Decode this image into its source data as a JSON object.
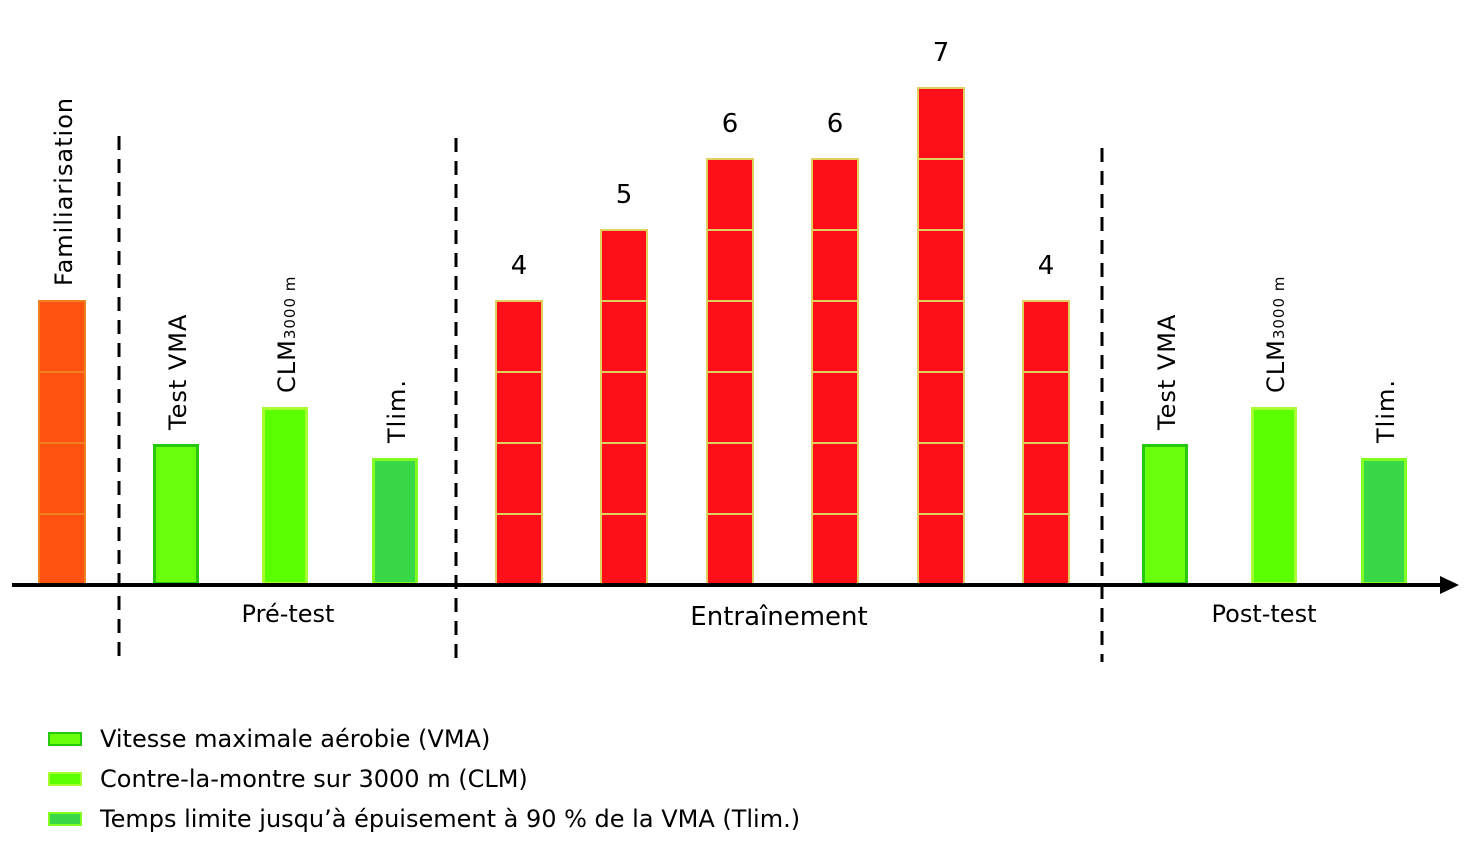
{
  "colors": {
    "familiarisation": "#ff5210",
    "familiarisation_border": "#f08020",
    "training": "#ff1018",
    "training_border": "#e0d060",
    "vma": "#6aff0a",
    "vma_border": "#28c810",
    "clm": "#5aff00",
    "clm_border": "#a8ff30",
    "tlim": "#38d848",
    "tlim_border": "#80ff20"
  },
  "familiarisation": {
    "label": "Familiarisation"
  },
  "pretest": {
    "phase_label": "Pré-test",
    "tests": [
      {
        "label": "Test  VMA",
        "sub": "",
        "kind": "vma"
      },
      {
        "label": "CLM",
        "sub": "3000 m",
        "kind": "clm"
      },
      {
        "label": "Tlim.",
        "sub": "",
        "kind": "tlim"
      }
    ]
  },
  "training": {
    "phase_label": "Entraînement",
    "sessions": [
      4,
      5,
      6,
      6,
      7,
      4
    ],
    "session_labels": [
      "4",
      "5",
      "6",
      "6",
      "7",
      "4"
    ]
  },
  "posttest": {
    "phase_label": "Post-test",
    "tests": [
      {
        "label": "Test  VMA",
        "sub": "",
        "kind": "vma"
      },
      {
        "label": "CLM",
        "sub": "3000 m",
        "kind": "clm"
      },
      {
        "label": "Tlim.",
        "sub": "",
        "kind": "tlim"
      }
    ]
  },
  "legend": [
    {
      "kind": "vma",
      "label": "Vitesse maximale aérobie (VMA)"
    },
    {
      "kind": "clm",
      "label": "Contre-la-montre sur 3000 m (CLM)"
    },
    {
      "kind": "tlim",
      "label": "Temps limite jusqu’à épuisement à 90 % de la VMA (Tlim.)"
    }
  ]
}
